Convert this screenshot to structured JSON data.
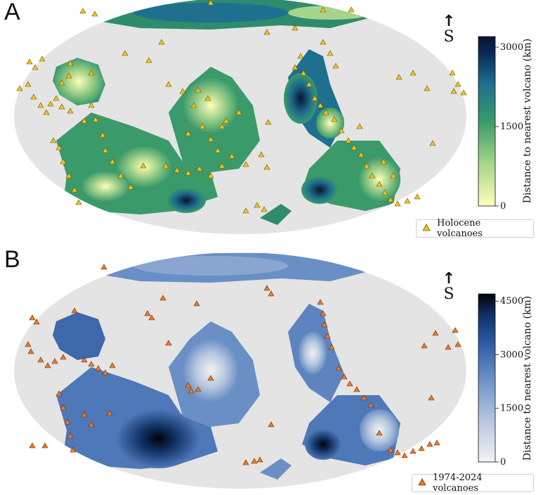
{
  "panels": [
    {
      "letter": "A",
      "north_label": "S",
      "colorbar": {
        "label": "Distance to nearest volcano (km)",
        "ticks": [
          0,
          1500,
          3000
        ],
        "max": 3200,
        "colors": [
          "#fefebd",
          "#a7d48c",
          "#3a9a6a",
          "#1f6f8e",
          "#0a2a55",
          "#071530"
        ]
      },
      "legend_label": "Holocene volcanoes",
      "marker_color": "#f2c41b"
    },
    {
      "letter": "B",
      "north_label": "S",
      "colorbar": {
        "label": "Distance to nearest volcano (km)",
        "ticks": [
          0,
          1500,
          3000,
          4500
        ],
        "max": 4700,
        "colors": [
          "#f2f2f2",
          "#b5c6df",
          "#6a8fc4",
          "#2f5ea3",
          "#0f2f63",
          "#020306"
        ]
      },
      "legend_label": "1974-2024 volcanoes",
      "marker_color": "#ec7a2a"
    }
  ],
  "map": {
    "ocean_color": "#e4e4e4"
  }
}
